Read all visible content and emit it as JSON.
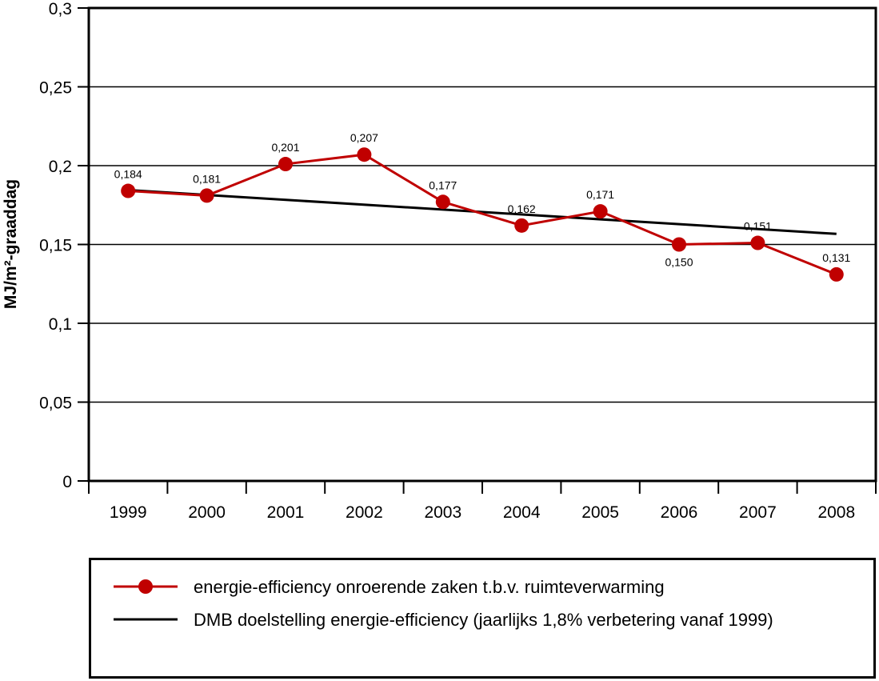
{
  "chart_data": {
    "type": "line",
    "ylabel": "MJ/m²-graaddag",
    "ylim": [
      0,
      0.3
    ],
    "yticks": [
      {
        "value": 0,
        "label": "0"
      },
      {
        "value": 0.05,
        "label": "0,05"
      },
      {
        "value": 0.1,
        "label": "0,1"
      },
      {
        "value": 0.15,
        "label": "0,15"
      },
      {
        "value": 0.2,
        "label": "0,2"
      },
      {
        "value": 0.25,
        "label": "0,25"
      },
      {
        "value": 0.3,
        "label": "0,3"
      }
    ],
    "categories": [
      "1999",
      "2000",
      "2001",
      "2002",
      "2003",
      "2004",
      "2005",
      "2006",
      "2007",
      "2008"
    ],
    "grid": true,
    "series": [
      {
        "name": "energie-efficiency onroerende zaken t.b.v. ruimteverwarming",
        "color": "#c00000",
        "marker": "circle",
        "values": [
          0.184,
          0.181,
          0.201,
          0.207,
          0.177,
          0.162,
          0.171,
          0.15,
          0.151,
          0.131
        ],
        "labels": [
          "0,184",
          "0,181",
          "0,201",
          "0,207",
          "0,177",
          "0,162",
          "0,171",
          "0,150",
          "0,151",
          "0,131"
        ],
        "label_position": [
          "above",
          "above",
          "above",
          "above",
          "above",
          "above",
          "above",
          "below",
          "above",
          "above"
        ]
      },
      {
        "name": "DMB doelstelling energie-efficiency (jaarlijks 1,8% verbetering vanaf 1999)",
        "color": "#000000",
        "marker": "none",
        "values": [
          0.1845,
          0.1812,
          0.1779,
          0.1747,
          0.1716,
          0.1685,
          0.1655,
          0.1625,
          0.1596,
          0.1567
        ]
      }
    ],
    "legend": {
      "placement": "bottom",
      "items": [
        "energie-efficiency onroerende zaken t.b.v. ruimteverwarming",
        "DMB doelstelling energie-efficiency (jaarlijks 1,8% verbetering vanaf 1999)"
      ]
    }
  }
}
